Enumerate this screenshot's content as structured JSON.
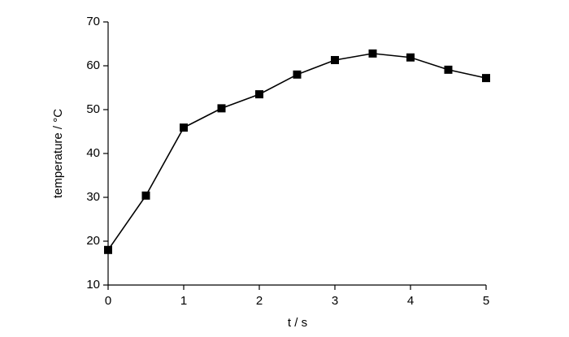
{
  "chart_data": {
    "type": "line",
    "xlabel": "t / s",
    "ylabel": "temperature / °C",
    "x": [
      0,
      0.5,
      1,
      1.5,
      2,
      2.5,
      3,
      3.5,
      4,
      4.5,
      5
    ],
    "series": [
      {
        "color": "#000000",
        "values": [
          18.0,
          30.4,
          45.9,
          50.3,
          53.5,
          58.0,
          61.3,
          62.8,
          61.9,
          59.1,
          57.2
        ]
      }
    ],
    "xlim": [
      0,
      5
    ],
    "xticks": [
      0,
      1,
      2,
      3,
      4,
      5
    ],
    "ylim": [
      10,
      70
    ],
    "yticks": [
      10,
      20,
      30,
      40,
      50,
      60,
      70
    ],
    "grid": false,
    "marker": "square"
  }
}
